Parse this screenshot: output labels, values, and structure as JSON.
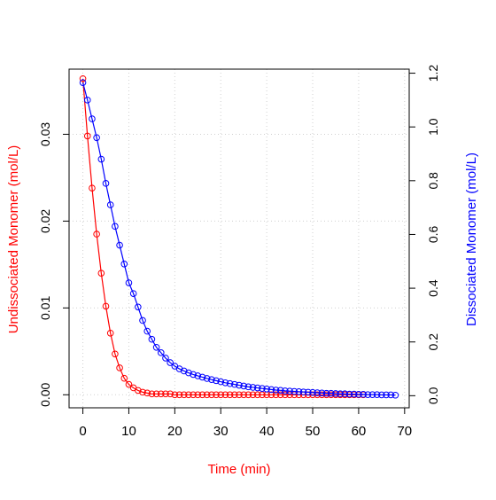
{
  "chart_data": {
    "type": "line",
    "title": "",
    "xlabel": "Time (min)",
    "ylabel_left": "Undissociated Monomer (mol/L)",
    "ylabel_right": "Dissociated Monomer (mol/L)",
    "xlim": [
      -3,
      71
    ],
    "ylim_left": [
      -0.0015,
      0.0375
    ],
    "ylim_right": [
      -0.045,
      1.215
    ],
    "x_ticks": [
      0,
      10,
      20,
      30,
      40,
      50,
      60,
      70
    ],
    "y_left_ticks": [
      0.0,
      0.01,
      0.02,
      0.03
    ],
    "y_left_tick_labels": [
      "0.00",
      "0.01",
      "0.02",
      "0.03"
    ],
    "y_right_ticks": [
      0.0,
      0.2,
      0.4,
      0.6,
      0.8,
      1.0,
      1.2
    ],
    "y_right_tick_labels": [
      "0.0",
      "0.2",
      "0.4",
      "0.6",
      "0.8",
      "1.0",
      "1.2"
    ],
    "grid": true,
    "colors": {
      "undissociated": "#ff0000",
      "dissociated": "#0000ff",
      "grid": "#d0d0d0",
      "axis": "#000000"
    },
    "series": [
      {
        "axis": "left",
        "color": "#ff0000",
        "x": [
          0,
          1,
          2,
          3,
          4,
          5,
          6,
          7,
          8,
          9,
          10,
          11,
          12,
          13,
          14,
          15,
          16,
          17,
          18,
          19,
          20,
          21,
          22,
          23,
          24,
          25,
          26,
          27,
          28,
          29,
          30,
          31,
          32,
          33,
          34,
          35,
          36,
          37,
          38,
          39,
          40,
          41,
          42,
          43,
          44,
          45,
          46,
          47,
          48,
          49,
          50,
          51,
          52,
          53,
          54,
          55,
          56,
          57,
          58,
          59,
          60,
          61
        ],
        "values": [
          0.0364,
          0.0298,
          0.0238,
          0.0185,
          0.014,
          0.0102,
          0.0071,
          0.0047,
          0.0031,
          0.0019,
          0.0012,
          0.0008,
          0.0005,
          0.0003,
          0.0002,
          0.0001,
          0.0001,
          0.0001,
          0.0001,
          0.0001,
          0,
          0,
          0,
          0,
          0,
          0,
          0,
          0,
          0,
          0,
          0,
          0,
          0,
          0,
          0,
          0,
          0,
          0,
          0,
          0,
          0,
          0,
          0,
          0,
          0,
          0,
          0,
          0,
          0,
          0,
          0,
          0,
          0,
          0,
          0,
          0,
          0,
          0,
          0,
          0,
          0,
          0
        ]
      },
      {
        "axis": "right",
        "color": "#0000ff",
        "x": [
          0,
          1,
          2,
          3,
          4,
          5,
          6,
          7,
          8,
          9,
          10,
          11,
          12,
          13,
          14,
          15,
          16,
          17,
          18,
          19,
          20,
          21,
          22,
          23,
          24,
          25,
          26,
          27,
          28,
          29,
          30,
          31,
          32,
          33,
          34,
          35,
          36,
          37,
          38,
          39,
          40,
          41,
          42,
          43,
          44,
          45,
          46,
          47,
          48,
          49,
          50,
          51,
          52,
          53,
          54,
          55,
          56,
          57,
          58,
          59,
          60,
          61,
          62,
          63,
          64,
          65,
          66,
          67,
          68
        ],
        "values": [
          1.165,
          1.1,
          1.03,
          0.96,
          0.88,
          0.79,
          0.71,
          0.63,
          0.56,
          0.49,
          0.42,
          0.38,
          0.33,
          0.28,
          0.24,
          0.21,
          0.18,
          0.16,
          0.14,
          0.123,
          0.11,
          0.1,
          0.092,
          0.085,
          0.079,
          0.074,
          0.069,
          0.064,
          0.06,
          0.056,
          0.052,
          0.048,
          0.045,
          0.042,
          0.039,
          0.036,
          0.033,
          0.031,
          0.029,
          0.027,
          0.025,
          0.023,
          0.021,
          0.02,
          0.018,
          0.017,
          0.016,
          0.015,
          0.014,
          0.013,
          0.012,
          0.011,
          0.01,
          0.009,
          0.009,
          0.008,
          0.007,
          0.007,
          0.006,
          0.006,
          0.005,
          0.005,
          0.004,
          0.004,
          0.004,
          0.003,
          0.003,
          0.003,
          0.002
        ]
      }
    ]
  }
}
